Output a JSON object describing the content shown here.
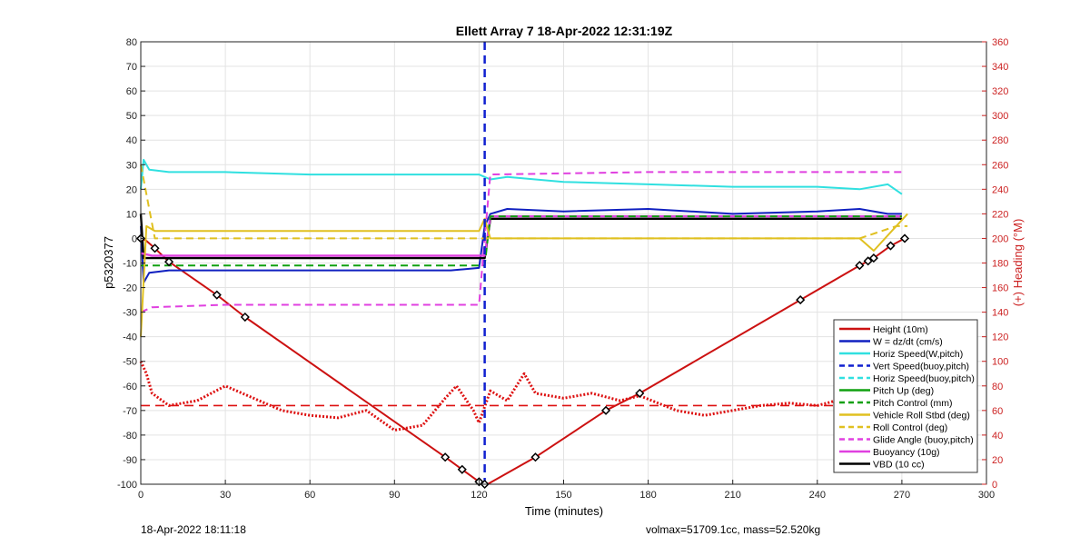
{
  "footer": {
    "left": "18-Apr-2022 18:11:18",
    "right": "volmax=51709.1cc, mass=52.520kg"
  },
  "colors": {
    "height": "#cc1111",
    "w": "#1020c0",
    "horiz": "#30e0e0",
    "vert_buoy": "#1020d0",
    "pitch": "#10a010",
    "roll": "#e0c020",
    "buoyancy": "#e040e0",
    "vbd": "#000000",
    "heading": "#dd1111",
    "right_axis": "#cc2222"
  },
  "chart_data": {
    "type": "line",
    "title": "Ellett Array 7 18-Apr-2022 12:31:19Z",
    "xlabel": "Time (minutes)",
    "ylabel": "p5320377",
    "ylabel_right": "(+) Heading (°M)",
    "xlim": [
      0,
      300
    ],
    "ylim": [
      -100,
      80
    ],
    "ylim_right": [
      0,
      360
    ],
    "xticks": [
      0,
      30,
      60,
      90,
      120,
      150,
      180,
      210,
      240,
      270,
      300
    ],
    "yticks": [
      -100,
      -90,
      -80,
      -70,
      -60,
      -50,
      -40,
      -30,
      -20,
      -10,
      0,
      10,
      20,
      30,
      40,
      50,
      60,
      70,
      80
    ],
    "yticks_right": [
      0,
      20,
      40,
      60,
      80,
      100,
      120,
      140,
      160,
      180,
      200,
      220,
      240,
      260,
      280,
      300,
      320,
      340,
      360
    ],
    "grid": true,
    "legend_position": "bottom-right",
    "legend": [
      {
        "label": "Height (10m)",
        "color": "#cc1111",
        "dash": false
      },
      {
        "label": "W = dz/dt (cm/s)",
        "color": "#1020c0",
        "dash": false
      },
      {
        "label": "Horiz Speed(W,pitch)",
        "color": "#30e0e0",
        "dash": false
      },
      {
        "label": "Vert Speed(buoy,pitch)",
        "color": "#1020d0",
        "dash": true
      },
      {
        "label": "Horiz Speed(buoy,pitch)",
        "color": "#30e0e0",
        "dash": true
      },
      {
        "label": "Pitch Up (deg)",
        "color": "#10a010",
        "dash": false
      },
      {
        "label": "Pitch Control (mm)",
        "color": "#10a010",
        "dash": true
      },
      {
        "label": "Vehicle Roll Stbd (deg)",
        "color": "#e0c020",
        "dash": false
      },
      {
        "label": "Roll Control (deg)",
        "color": "#e0c020",
        "dash": true
      },
      {
        "label": "Glide Angle (buoy,pitch)",
        "color": "#e040e0",
        "dash": true
      },
      {
        "label": "Buoyancy (10g)",
        "color": "#e040e0",
        "dash": false
      },
      {
        "label": "VBD (10 cc)",
        "color": "#000000",
        "dash": false
      }
    ],
    "series": [
      {
        "key": "height",
        "x": [
          0,
          2,
          5,
          10,
          27,
          37,
          108,
          114,
          120,
          122,
          123,
          140,
          165,
          177,
          234,
          255,
          260,
          266,
          271
        ],
        "y": [
          0,
          -1,
          -4,
          -9.5,
          -23,
          -32,
          -89,
          -94,
          -99,
          -100,
          -100,
          -89,
          -70,
          -63,
          -25,
          -11,
          -8,
          -3,
          0
        ]
      },
      {
        "key": "w",
        "x": [
          0,
          1,
          3,
          10,
          30,
          60,
          90,
          110,
          120,
          122,
          124,
          130,
          150,
          180,
          210,
          240,
          255,
          265,
          270
        ],
        "y": [
          5,
          -18,
          -14,
          -13,
          -13,
          -13,
          -13,
          -13,
          -12,
          5,
          10,
          12,
          11,
          12,
          10,
          11,
          12,
          10,
          10
        ]
      },
      {
        "key": "horiz",
        "x": [
          0,
          1,
          3,
          10,
          30,
          60,
          90,
          110,
          120,
          122,
          124,
          130,
          150,
          180,
          210,
          240,
          255,
          265,
          270
        ],
        "y": [
          20,
          32,
          28,
          27,
          27,
          26,
          26,
          26,
          26,
          25,
          24,
          25,
          23,
          22,
          21,
          21,
          20,
          22,
          18
        ]
      },
      {
        "key": "vbd",
        "x": [
          0,
          1,
          4,
          10,
          60,
          115,
          122,
          124,
          270
        ],
        "y": [
          10,
          -8,
          -8,
          -8,
          -8,
          -8,
          -8,
          8,
          8
        ]
      },
      {
        "key": "buoyancy",
        "x": [
          0,
          4,
          10,
          60,
          115,
          122,
          124,
          200,
          254,
          270
        ],
        "y": [
          -6,
          -7,
          -7,
          -7,
          -7,
          -7,
          9,
          9,
          9,
          9
        ]
      },
      {
        "key": "pitch_ctrl",
        "x": [
          0,
          4,
          10,
          60,
          120,
          122,
          124,
          180,
          270
        ],
        "y": [
          -11,
          -11,
          -11,
          -11,
          -11,
          -11,
          9,
          9,
          9
        ]
      },
      {
        "key": "glide_buoy",
        "x": [
          0,
          4,
          30,
          60,
          110,
          120,
          122,
          124,
          180,
          255,
          270
        ],
        "y": [
          -30,
          -28,
          -27,
          -27,
          -27,
          -27,
          0,
          26,
          27,
          27,
          27
        ]
      },
      {
        "key": "roll",
        "x": [
          0,
          2,
          5,
          30,
          60,
          110,
          120,
          122,
          124,
          150,
          200,
          255,
          260,
          268,
          272
        ],
        "y": [
          -40,
          5,
          3,
          3,
          3,
          3,
          3,
          8,
          0,
          0,
          0,
          0,
          -5,
          5,
          10
        ]
      },
      {
        "key": "roll_ctrl",
        "x": [
          0,
          5,
          30,
          60,
          110,
          120,
          122,
          124,
          150,
          200,
          255,
          268,
          272
        ],
        "y": [
          30,
          0,
          0,
          0,
          0,
          0,
          0,
          0,
          0,
          0,
          0,
          5,
          5
        ]
      },
      {
        "key": "heading_ref",
        "x": [
          0,
          270
        ],
        "y": [
          -68,
          -68
        ]
      },
      {
        "key": "heading",
        "x": [
          0,
          2,
          4,
          10,
          20,
          30,
          40,
          50,
          60,
          70,
          80,
          90,
          100,
          108,
          112,
          118,
          120,
          124,
          130,
          136,
          140,
          150,
          160,
          170,
          177,
          190,
          200,
          210,
          220,
          230,
          240,
          250,
          256,
          260,
          266,
          270
        ],
        "y": [
          -50,
          -55,
          -63,
          -68,
          -66,
          -60,
          -65,
          -70,
          -72,
          -73,
          -70,
          -78,
          -76,
          -65,
          -60,
          -70,
          -75,
          -62,
          -66,
          -55,
          -63,
          -65,
          -63,
          -66,
          -64,
          -70,
          -72,
          -70,
          -68,
          -67,
          -68,
          -65,
          -62,
          -70,
          -72,
          -75
        ]
      }
    ],
    "marker_x": [
      0,
      5,
      10,
      27,
      37,
      108,
      114,
      120,
      122,
      140,
      165,
      177,
      234,
      255,
      258,
      260,
      266,
      271
    ],
    "vline_x": 122
  }
}
